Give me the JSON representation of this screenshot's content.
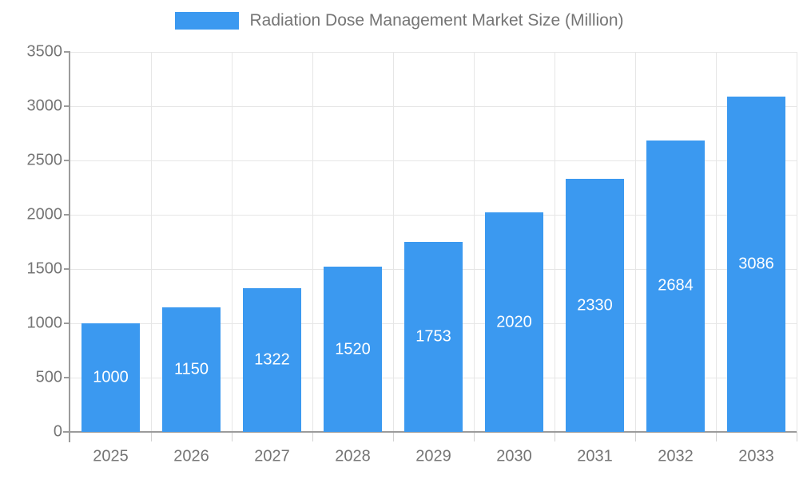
{
  "chart_data": {
    "type": "bar",
    "title": "Radiation Dose Management Market Size (Million)",
    "categories": [
      "2025",
      "2026",
      "2027",
      "2028",
      "2029",
      "2030",
      "2031",
      "2032",
      "2033"
    ],
    "values": [
      1000,
      1150,
      1322,
      1520,
      1753,
      2020,
      2330,
      2684,
      3086
    ],
    "xlabel": "",
    "ylabel": "",
    "ylim": [
      0,
      3500
    ],
    "yticks": [
      0,
      500,
      1000,
      1500,
      2000,
      2500,
      3000,
      3500
    ],
    "grid": true,
    "legend_position": "top",
    "colors": {
      "bar": "#3b99f0",
      "bar_label": "#ffffff",
      "axis_text": "#757575",
      "grid_line": "#e6e6e6",
      "axis_line": "#9b9b9b",
      "minor_tick": "#d2d2d2",
      "background": "#ffffff"
    }
  }
}
